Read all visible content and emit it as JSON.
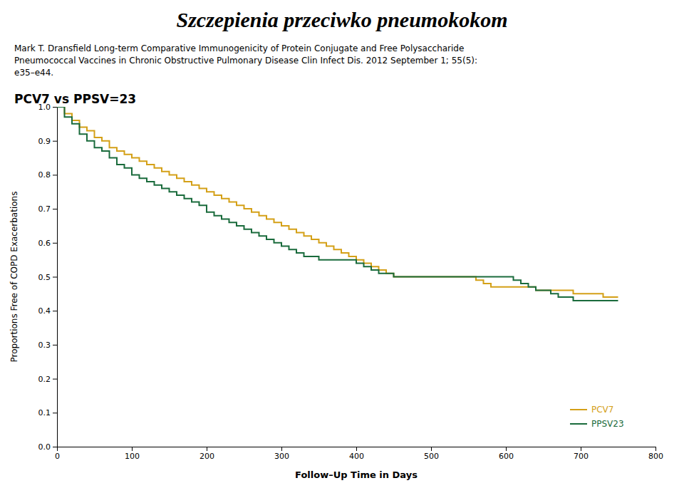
{
  "chart_data": {
    "type": "line",
    "title": "Szczepienia przeciwko pneumokokom",
    "subtitle": [
      "Mark T. Dransfield Long-term Comparative Immunogenicity of Protein Conjugate and Free Polysaccharide",
      "Pneumococcal Vaccines in Chronic Obstructive Pulmonary Disease Clin Infect Dis. 2012 September 1; 55(5):",
      "e35–e44."
    ],
    "annotations": [
      "PCV7 vs PPSV=23"
    ],
    "x_label": "Follow–Up Time in Days",
    "y_label": "Proportions Free of COPD Exacerbations",
    "x": [
      0,
      10,
      20,
      30,
      40,
      50,
      60,
      70,
      80,
      90,
      100,
      110,
      120,
      130,
      140,
      150,
      160,
      170,
      180,
      190,
      200,
      210,
      220,
      230,
      240,
      250,
      260,
      270,
      280,
      290,
      300,
      310,
      320,
      330,
      340,
      350,
      360,
      370,
      380,
      390,
      400,
      410,
      420,
      430,
      440,
      450,
      460,
      470,
      480,
      490,
      500,
      510,
      520,
      530,
      540,
      550,
      560,
      570,
      580,
      590,
      600,
      610,
      620,
      630,
      640,
      650,
      660,
      670,
      680,
      690,
      700,
      710,
      720,
      730,
      740,
      750
    ],
    "series": [
      {
        "name": "PCV7",
        "color": "#d4a017",
        "line_style": "step",
        "values": [
          1.0,
          0.98,
          0.96,
          0.94,
          0.93,
          0.91,
          0.9,
          0.88,
          0.87,
          0.86,
          0.85,
          0.84,
          0.83,
          0.82,
          0.81,
          0.8,
          0.79,
          0.78,
          0.77,
          0.76,
          0.75,
          0.74,
          0.73,
          0.72,
          0.71,
          0.7,
          0.69,
          0.68,
          0.67,
          0.66,
          0.65,
          0.64,
          0.63,
          0.62,
          0.61,
          0.6,
          0.59,
          0.58,
          0.57,
          0.56,
          0.55,
          0.54,
          0.53,
          0.52,
          0.51,
          0.5,
          0.5,
          0.5,
          0.5,
          0.5,
          0.5,
          0.5,
          0.5,
          0.5,
          0.5,
          0.5,
          0.49,
          0.48,
          0.47,
          0.47,
          0.47,
          0.47,
          0.47,
          0.47,
          0.46,
          0.46,
          0.46,
          0.46,
          0.46,
          0.45,
          0.45,
          0.45,
          0.45,
          0.44,
          0.44,
          0.44
        ]
      },
      {
        "name": "PPSV23",
        "color": "#1a6b3c",
        "line_style": "step",
        "values": [
          1.0,
          0.97,
          0.95,
          0.92,
          0.9,
          0.88,
          0.87,
          0.85,
          0.83,
          0.82,
          0.8,
          0.79,
          0.78,
          0.77,
          0.76,
          0.75,
          0.74,
          0.73,
          0.72,
          0.71,
          0.69,
          0.68,
          0.67,
          0.66,
          0.65,
          0.64,
          0.63,
          0.62,
          0.61,
          0.6,
          0.59,
          0.58,
          0.57,
          0.56,
          0.56,
          0.55,
          0.55,
          0.55,
          0.55,
          0.55,
          0.54,
          0.53,
          0.52,
          0.51,
          0.51,
          0.5,
          0.5,
          0.5,
          0.5,
          0.5,
          0.5,
          0.5,
          0.5,
          0.5,
          0.5,
          0.5,
          0.5,
          0.5,
          0.5,
          0.5,
          0.5,
          0.49,
          0.48,
          0.47,
          0.46,
          0.46,
          0.45,
          0.44,
          0.44,
          0.43,
          0.43,
          0.43,
          0.43,
          0.43,
          0.43,
          0.43
        ]
      }
    ],
    "xlim": [
      0,
      800
    ],
    "ylim": [
      0.0,
      1.0
    ],
    "xticks": [
      0,
      100,
      200,
      300,
      400,
      500,
      600,
      700,
      800
    ],
    "yticks": [
      {
        "value": 0.0,
        "label": "0.0"
      },
      0.1,
      0.2,
      0.3,
      0.4,
      0.5,
      0.6,
      0.7,
      0.8,
      0.9,
      {
        "value": 1.0,
        "label": "1.0"
      }
    ],
    "grid": false,
    "legend": "lower right"
  }
}
